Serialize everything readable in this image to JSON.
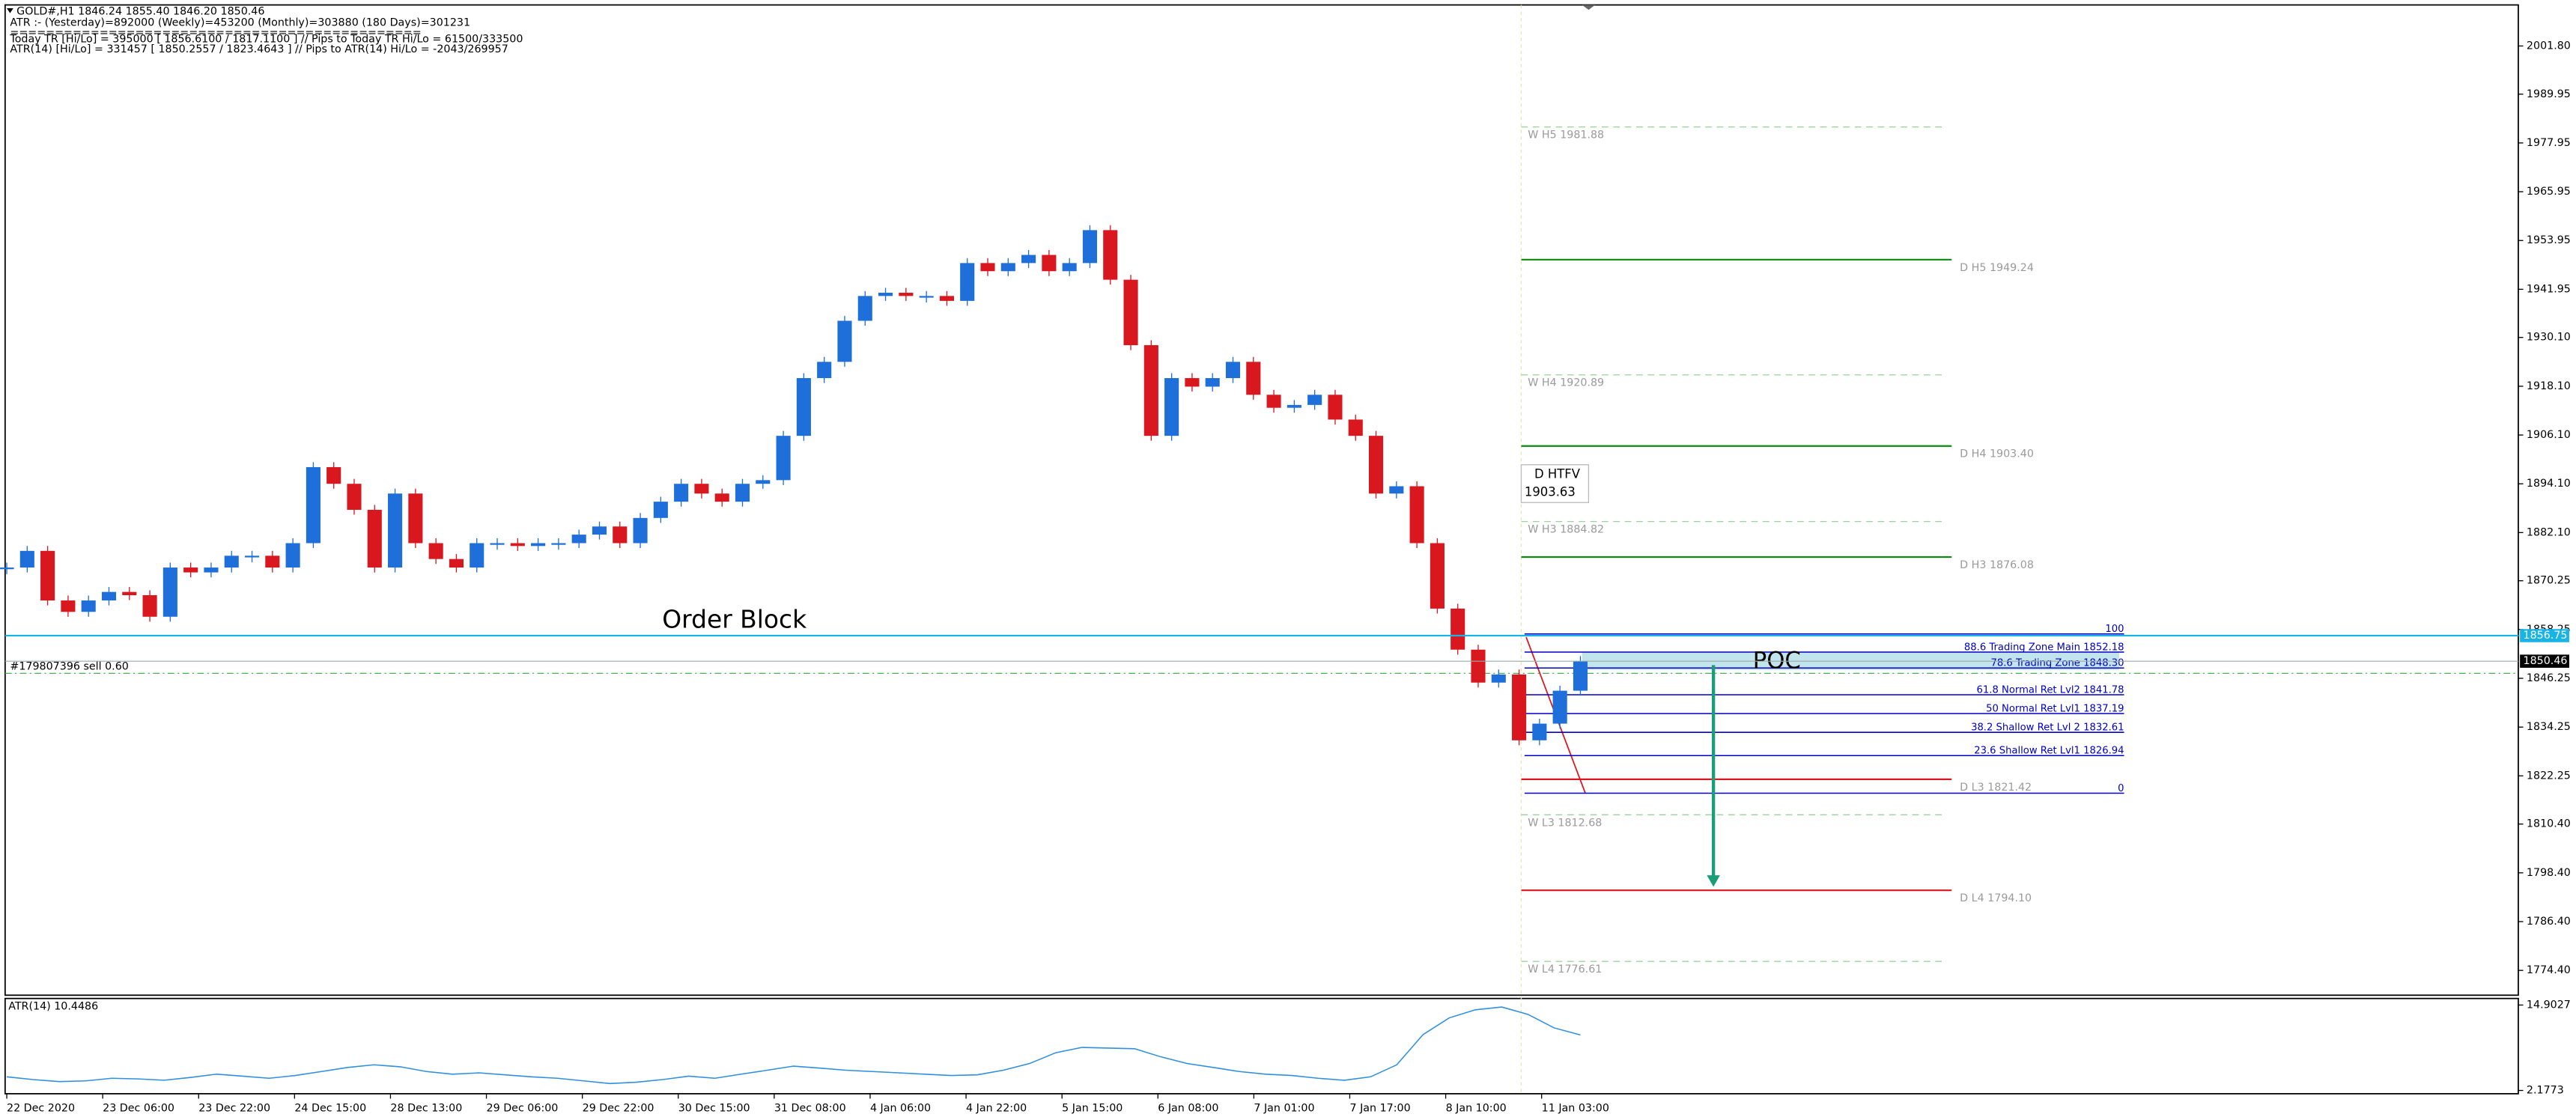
{
  "header": [
    "GOLD#,H1  1846.24 1855.40 1846.20 1850.46",
    "ATR :- (Yesterday)=892000      (Weekly)=453200      (Monthly)=303880      (180 Days)=301231",
    "==============================================",
    "Today  TR [Hi/Lo] = 395000 [ 1856.6100 / 1817.1100 ]  // Pips to Today  TR Hi/Lo  = 61500/333500",
    "ATR(14)      [Hi/Lo] = 331457 [ 1850.2557 / 1823.4643 ]  // Pips to ATR(14) Hi/Lo       = -2043/269957"
  ],
  "chart_data": {
    "type": "candlestick",
    "up_color": "#1e6fd9",
    "down_color": "#d9171e",
    "ylim": [
      1768.3,
      2011.9
    ],
    "yticks": [
      {
        "value": 2001.8,
        "label": "2001.80"
      },
      {
        "value": 1989.95,
        "label": "1989.95"
      },
      {
        "value": 1977.95,
        "label": "1977.95"
      },
      {
        "value": 1965.95,
        "label": "1965.95"
      },
      {
        "value": 1953.95,
        "label": "1953.95"
      },
      {
        "value": 1941.95,
        "label": "1941.95"
      },
      {
        "value": 1930.1,
        "label": "1930.10"
      },
      {
        "value": 1918.1,
        "label": "1918.10"
      },
      {
        "value": 1906.1,
        "label": "1906.10"
      },
      {
        "value": 1894.1,
        "label": "1894.10"
      },
      {
        "value": 1882.1,
        "label": "1882.10"
      },
      {
        "value": 1870.25,
        "label": "1870.25"
      },
      {
        "value": 1858.25,
        "label": "1858.25"
      },
      {
        "value": 1846.25,
        "label": "1846.25"
      },
      {
        "value": 1834.25,
        "label": "1834.25"
      },
      {
        "value": 1822.25,
        "label": "1822.25"
      },
      {
        "value": 1810.4,
        "label": "1810.40"
      },
      {
        "value": 1798.4,
        "label": "1798.40"
      },
      {
        "value": 1786.4,
        "label": "1786.40"
      },
      {
        "value": 1774.4,
        "label": "1774.40"
      }
    ],
    "x_labels": [
      "22 Dec 2020",
      "23 Dec 06:00",
      "23 Dec 22:00",
      "24 Dec 15:00",
      "28 Dec 13:00",
      "29 Dec 06:00",
      "29 Dec 22:00",
      "30 Dec 15:00",
      "31 Dec 08:00",
      "4 Jan 06:00",
      "4 Jan 22:00",
      "5 Jan 15:00",
      "6 Jan 08:00",
      "7 Jan 01:00",
      "7 Jan 17:00",
      "8 Jan 10:00",
      "11 Jan 03:00"
    ],
    "closes": [
      1873.5,
      1877.6,
      1865.4,
      1862.6,
      1865.4,
      1867.5,
      1866.7,
      1861.4,
      1873.5,
      1872.3,
      1873.5,
      1876.4,
      1876.4,
      1873.5,
      1879.5,
      1898.2,
      1894.1,
      1887.7,
      1873.5,
      1891.7,
      1879.5,
      1875.6,
      1873.5,
      1879.5,
      1879.5,
      1878.8,
      1879.5,
      1879.5,
      1881.6,
      1883.6,
      1879.5,
      1885.7,
      1889.7,
      1894.1,
      1891.7,
      1889.7,
      1894.1,
      1895.0,
      1905.9,
      1920.1,
      1924.1,
      1934.2,
      1940.3,
      1941.1,
      1940.3,
      1940.3,
      1939.1,
      1948.4,
      1946.4,
      1948.4,
      1950.4,
      1946.4,
      1948.4,
      1956.5,
      1944.3,
      1928.2,
      1905.9,
      1920.1,
      1918.0,
      1920.1,
      1924.1,
      1916.0,
      1912.8,
      1913.5,
      1916.0,
      1909.9,
      1905.9,
      1891.7,
      1893.5,
      1879.5,
      1863.4,
      1853.3,
      1845.2,
      1847.2,
      1831.0,
      1835.1,
      1843.2,
      1850.5
    ],
    "price_tags": [
      {
        "value": 1856.75,
        "color": "#19b4e6"
      },
      {
        "value": 1850.46,
        "color": "#000000"
      }
    ],
    "levels": [
      {
        "label": "W H5 1981.88",
        "value": 1981.88,
        "style": "weekly",
        "color": "#9bd49b"
      },
      {
        "label": "D H5 1949.24",
        "value": 1949.24,
        "style": "daily",
        "color": "#0a8a0a"
      },
      {
        "label": "W H4 1920.89",
        "value": 1920.89,
        "style": "weekly",
        "color": "#9bd49b"
      },
      {
        "label": "D H4 1903.40",
        "value": 1903.4,
        "style": "daily",
        "color": "#0a8a0a"
      },
      {
        "label": "W H3 1884.82",
        "value": 1884.82,
        "style": "weekly",
        "color": "#9bd49b"
      },
      {
        "label": "D H3 1876.08",
        "value": 1876.08,
        "style": "daily",
        "color": "#0a8a0a"
      },
      {
        "label": "D L3 1821.42",
        "value": 1821.42,
        "style": "daily",
        "color": "#d9171e"
      },
      {
        "label": "W L3 1812.68",
        "value": 1812.68,
        "style": "weekly",
        "color": "#9bd49b"
      },
      {
        "label": "D L4 1794.10",
        "value": 1794.1,
        "style": "daily",
        "color": "#d9171e"
      },
      {
        "label": "W L4 1776.61",
        "value": 1776.61,
        "style": "weekly",
        "color": "#9bd49b"
      }
    ],
    "fib": [
      {
        "pct": 100.0,
        "text": null
      },
      {
        "pct": 88.6,
        "text": "Trading Zone Main 1852.18"
      },
      {
        "pct": 78.6,
        "text": "Trading Zone 1848.30"
      },
      {
        "pct": 61.8,
        "text": "Normal Ret Lvl2 1841.78"
      },
      {
        "pct": 50.0,
        "text": "Normal Ret Lvl1 1837.19"
      },
      {
        "pct": 38.2,
        "text": "Shallow Ret Lvl 2 1832.61"
      },
      {
        "pct": 23.6,
        "text": "Shallow Ret Lvl1 1826.94"
      },
      {
        "pct": 0.0,
        "text": null
      }
    ],
    "annotations": {
      "order_block": "Order Block",
      "poc": "POC",
      "trade": "#179807396 sell 0.60",
      "htfv_title": "D  HTFV",
      "htfv_value": "1903.63"
    },
    "atr": {
      "label": "ATR(14) 10.4486",
      "ylim": [
        1.69,
        15.88
      ],
      "yticks": [
        14.9027,
        2.1773
      ],
      "color": "#2f8fe0",
      "values": [
        4.2,
        3.8,
        3.5,
        3.6,
        4.0,
        3.9,
        3.7,
        4.1,
        4.6,
        4.3,
        4.0,
        4.4,
        5.0,
        5.6,
        6.0,
        5.7,
        5.0,
        4.6,
        4.8,
        4.5,
        4.2,
        4.0,
        3.6,
        3.2,
        3.4,
        3.8,
        4.3,
        4.0,
        4.6,
        5.2,
        5.8,
        5.5,
        5.2,
        5.0,
        4.8,
        4.6,
        4.4,
        4.5,
        5.2,
        6.2,
        7.8,
        8.6,
        8.5,
        8.4,
        7.2,
        6.2,
        5.6,
        5.0,
        4.6,
        4.4,
        4.0,
        3.7,
        4.2,
        6.0,
        10.5,
        13.0,
        14.2,
        14.6,
        13.5,
        11.5,
        10.4486
      ]
    }
  }
}
